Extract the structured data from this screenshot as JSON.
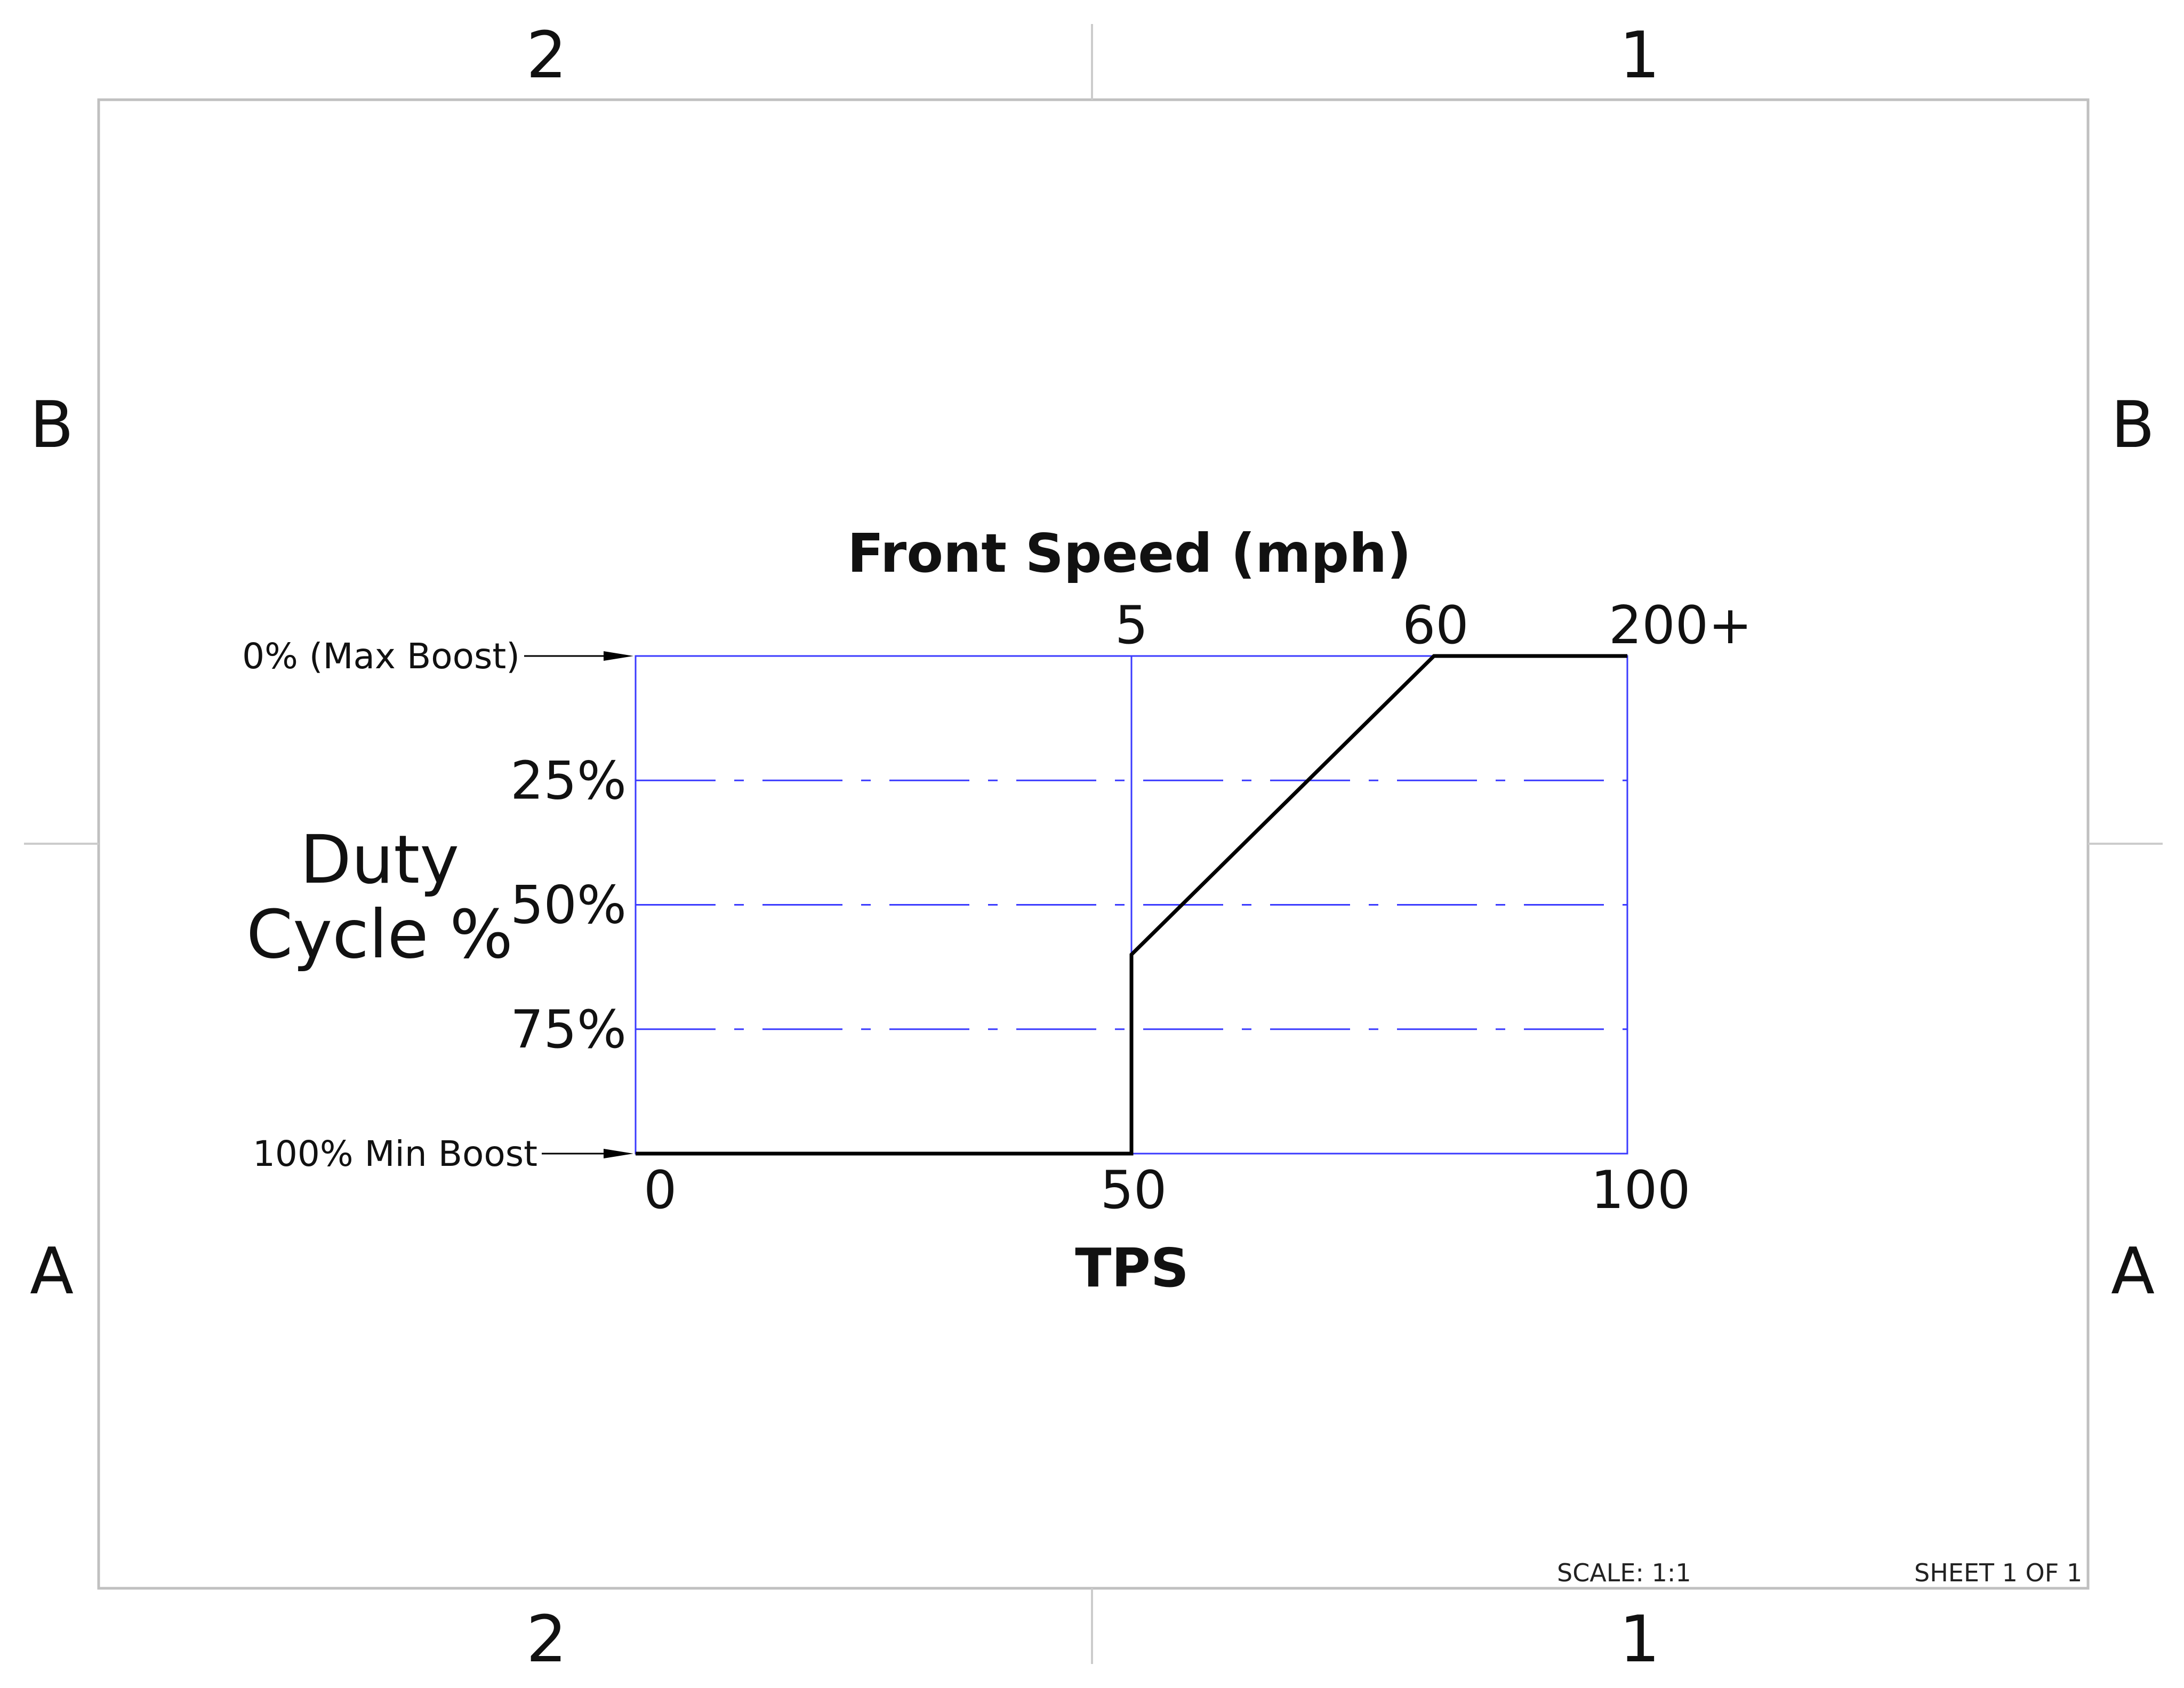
{
  "sheet": {
    "zones_top": [
      "2",
      "1"
    ],
    "zones_bottom": [
      "2",
      "1"
    ],
    "zones_left": [
      "B",
      "A"
    ],
    "zones_right": [
      "B",
      "A"
    ],
    "scale_text": "SCALE: 1:1",
    "sheet_text": "SHEET 1 OF 1"
  },
  "chart_data": {
    "type": "line",
    "title": "",
    "top_axis": {
      "label": "Front Speed (mph)",
      "ticks": [
        {
          "at_tps": 50,
          "label": "5"
        },
        {
          "at_tps": 80.5,
          "label": "60"
        },
        {
          "at_tps": 100,
          "label": "200+"
        }
      ]
    },
    "xlabel": "TPS",
    "ylabel_lines": [
      "Duty",
      "Cycle %"
    ],
    "xlim": [
      0,
      100
    ],
    "ylim": [
      0,
      100
    ],
    "y_inverted": true,
    "x_ticks": [
      {
        "value": 0,
        "label": "0"
      },
      {
        "value": 50,
        "label": "50"
      },
      {
        "value": 100,
        "label": "100"
      }
    ],
    "y_ticks": [
      {
        "value": 25,
        "label": "25%"
      },
      {
        "value": 50,
        "label": "50%"
      },
      {
        "value": 75,
        "label": "75%"
      }
    ],
    "y_annotations": [
      {
        "value": 0,
        "label": "0% (Max Boost)"
      },
      {
        "value": 100,
        "label": "100% Min Boost"
      }
    ],
    "series": [
      {
        "x": [
          0,
          50,
          50,
          80.5,
          100
        ],
        "y": [
          100,
          100,
          60,
          0,
          0
        ]
      }
    ],
    "grid": true,
    "colors": {
      "grid": "#3a3aff",
      "line": "#000000",
      "frame": "#c0c0c0"
    }
  }
}
